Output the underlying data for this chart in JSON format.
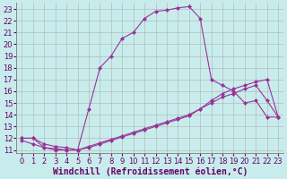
{
  "xlabel": "Windchill (Refroidissement éolien,°C)",
  "xlim": [
    -0.5,
    23.5
  ],
  "ylim": [
    10.7,
    23.5
  ],
  "xticks": [
    0,
    1,
    2,
    3,
    4,
    5,
    6,
    7,
    8,
    9,
    10,
    11,
    12,
    13,
    14,
    15,
    16,
    17,
    18,
    19,
    20,
    21,
    22,
    23
  ],
  "yticks": [
    11,
    12,
    13,
    14,
    15,
    16,
    17,
    18,
    19,
    20,
    21,
    22,
    23
  ],
  "background_color": "#c8ecec",
  "grid_color": "#b0b0b0",
  "line_color": "#993399",
  "line1_x": [
    0,
    1,
    2,
    3,
    4,
    5,
    6,
    7,
    8,
    9,
    10,
    11,
    12,
    13,
    14,
    15,
    16,
    17,
    18,
    19,
    20,
    21,
    22,
    23
  ],
  "line1_y": [
    12.0,
    12.0,
    11.2,
    11.0,
    11.0,
    11.0,
    14.5,
    18.0,
    19.0,
    20.5,
    21.0,
    22.2,
    22.8,
    22.9,
    23.1,
    23.2,
    22.2,
    17.0,
    16.5,
    16.0,
    15.0,
    15.2,
    13.8,
    13.8
  ],
  "line2_x": [
    0,
    1,
    2,
    3,
    4,
    5,
    6,
    7,
    8,
    9,
    10,
    11,
    12,
    13,
    14,
    15,
    16,
    17,
    18,
    19,
    20,
    21,
    22,
    23
  ],
  "line2_y": [
    12.0,
    12.0,
    11.5,
    11.3,
    11.2,
    11.0,
    11.2,
    11.5,
    11.8,
    12.1,
    12.4,
    12.7,
    13.0,
    13.3,
    13.6,
    13.9,
    14.5,
    15.2,
    15.8,
    16.2,
    16.5,
    16.8,
    17.0,
    13.8
  ],
  "line3_x": [
    0,
    1,
    2,
    3,
    4,
    5,
    6,
    7,
    8,
    9,
    10,
    11,
    12,
    13,
    14,
    15,
    16,
    17,
    18,
    19,
    20,
    21,
    22,
    23
  ],
  "line3_y": [
    11.8,
    11.5,
    11.2,
    11.1,
    11.0,
    11.0,
    11.3,
    11.6,
    11.9,
    12.2,
    12.5,
    12.8,
    13.1,
    13.4,
    13.7,
    14.0,
    14.5,
    15.0,
    15.5,
    15.8,
    16.2,
    16.5,
    15.2,
    13.8
  ],
  "marker": "D",
  "marker_size": 2,
  "font_color": "#660066",
  "tick_fontsize": 6,
  "label_fontsize": 7,
  "linewidth": 0.8
}
